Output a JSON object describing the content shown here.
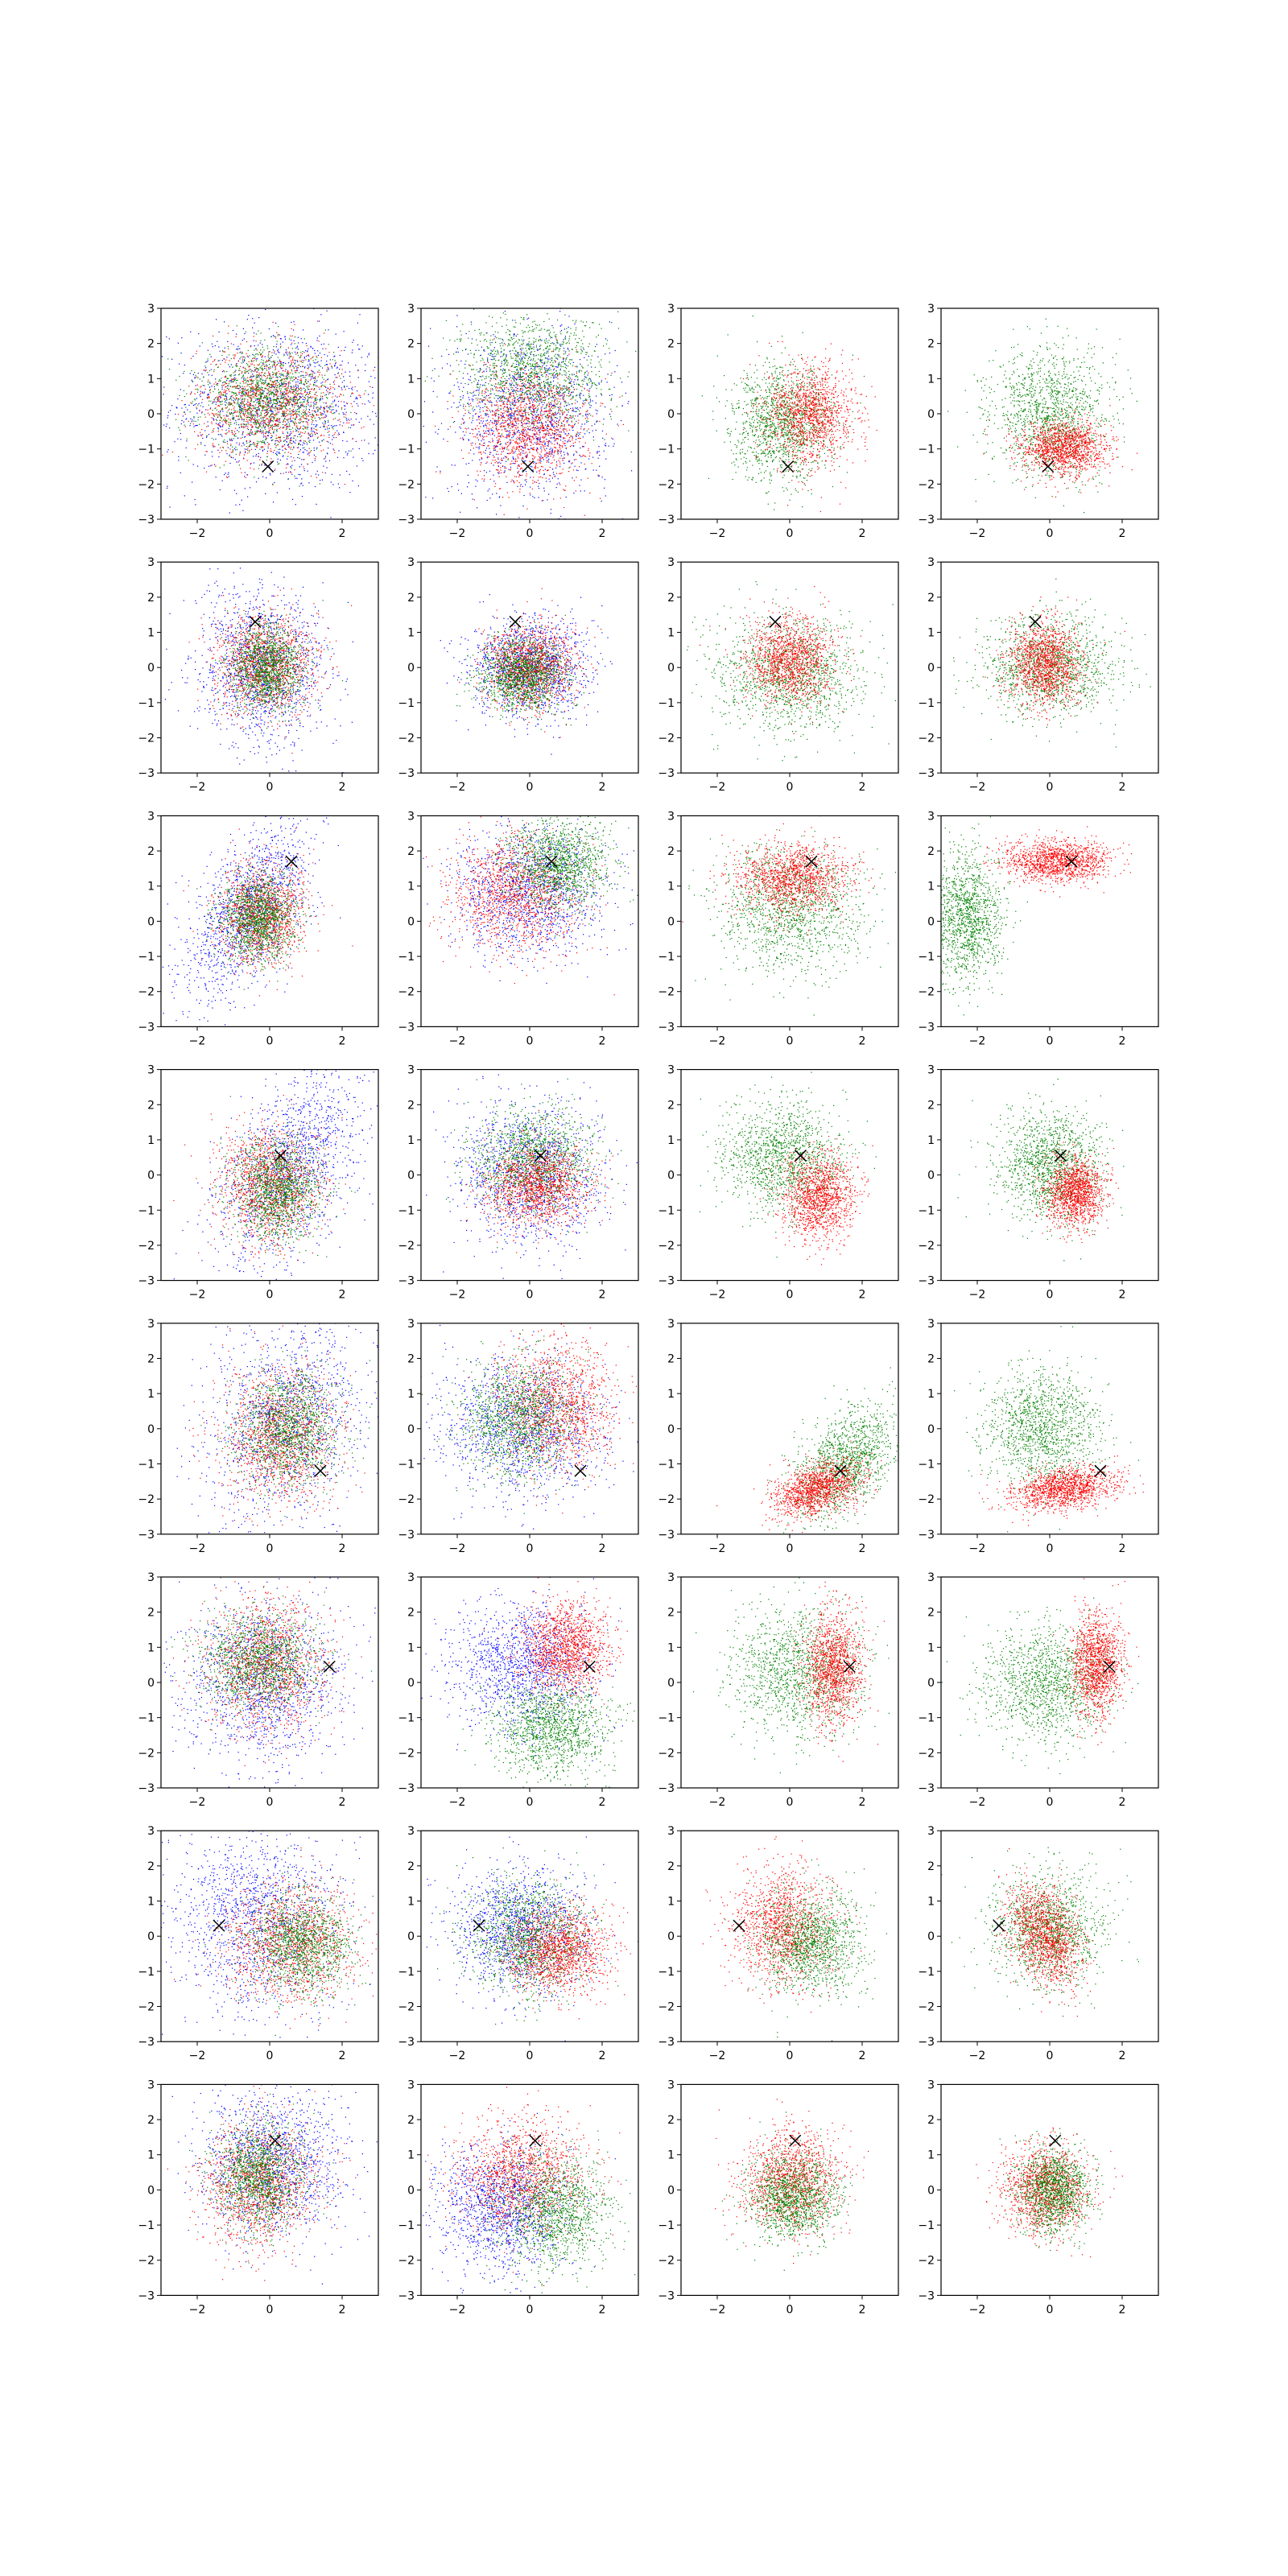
{
  "figure": {
    "rows": 8,
    "cols": 4,
    "colors": {
      "blue": "#0000ff",
      "green": "#008000",
      "red": "#ff0000",
      "marker": "#000000"
    },
    "marker_symbol": "x"
  },
  "chart_data": {
    "type": "scatter",
    "xlim": [
      -3,
      3
    ],
    "ylim": [
      -3,
      3
    ],
    "xticks": [
      -2,
      0,
      2
    ],
    "yticks": [
      -3,
      -2,
      -1,
      0,
      1,
      2,
      3
    ],
    "xtick_labels": [
      "−2",
      "0",
      "2"
    ],
    "ytick_labels": [
      "−3",
      "−2",
      "−1",
      "0",
      "1",
      "2",
      "3"
    ],
    "grid": false,
    "legend": "none",
    "rows": [
      {
        "marker": [
          -0.05,
          -1.5
        ],
        "panels": [
          {
            "clouds": [
              {
                "color": "blue",
                "mx": 0.3,
                "my": 0.2,
                "sx": 1.5,
                "sy": 1.2,
                "rho": 0.0
              },
              {
                "color": "red",
                "mx": 0.0,
                "my": 0.3,
                "sx": 1.0,
                "sy": 0.8,
                "rho": 0.0
              },
              {
                "color": "green",
                "mx": -0.1,
                "my": 0.4,
                "sx": 0.9,
                "sy": 0.7,
                "rho": 0.0
              }
            ]
          },
          {
            "clouds": [
              {
                "color": "blue",
                "mx": 0.0,
                "my": 0.0,
                "sx": 1.1,
                "sy": 1.2,
                "rho": 0.0
              },
              {
                "color": "green",
                "mx": 0.1,
                "my": 1.2,
                "sx": 1.0,
                "sy": 0.8,
                "rho": 0.0
              },
              {
                "color": "red",
                "mx": 0.0,
                "my": -0.4,
                "sx": 0.8,
                "sy": 0.8,
                "rho": 0.0
              }
            ]
          },
          {
            "clouds": [
              {
                "color": "green",
                "mx": -0.2,
                "my": -0.3,
                "sx": 0.7,
                "sy": 0.8,
                "rho": 0.0
              },
              {
                "color": "red",
                "mx": 0.6,
                "my": 0.0,
                "sx": 0.6,
                "sy": 0.7,
                "rho": 0.0
              }
            ]
          },
          {
            "clouds": [
              {
                "color": "green",
                "mx": 0.0,
                "my": 0.0,
                "sx": 0.8,
                "sy": 0.9,
                "rho": 0.0
              },
              {
                "color": "red",
                "mx": 0.4,
                "my": -1.0,
                "sx": 0.6,
                "sy": 0.4,
                "rho": 0.0
              }
            ]
          }
        ]
      },
      {
        "marker": [
          -0.4,
          1.3
        ],
        "panels": [
          {
            "clouds": [
              {
                "color": "blue",
                "mx": -0.2,
                "my": 0.0,
                "sx": 0.9,
                "sy": 1.1,
                "rho": 0.0
              },
              {
                "color": "red",
                "mx": -0.1,
                "my": 0.1,
                "sx": 0.7,
                "sy": 0.7,
                "rho": 0.0
              },
              {
                "color": "green",
                "mx": -0.1,
                "my": 0.0,
                "sx": 0.5,
                "sy": 0.6,
                "rho": 0.0
              }
            ]
          },
          {
            "clouds": [
              {
                "color": "blue",
                "mx": 0.0,
                "my": 0.0,
                "sx": 0.8,
                "sy": 0.7,
                "rho": 0.0
              },
              {
                "color": "red",
                "mx": 0.0,
                "my": 0.0,
                "sx": 0.6,
                "sy": 0.6,
                "rho": 0.0
              },
              {
                "color": "green",
                "mx": -0.2,
                "my": -0.2,
                "sx": 0.6,
                "sy": 0.5,
                "rho": 0.0
              }
            ]
          },
          {
            "clouds": [
              {
                "color": "green",
                "mx": 0.0,
                "my": -0.2,
                "sx": 1.0,
                "sy": 0.8,
                "rho": 0.0
              },
              {
                "color": "red",
                "mx": 0.0,
                "my": 0.2,
                "sx": 0.6,
                "sy": 0.6,
                "rho": 0.0
              }
            ]
          },
          {
            "clouds": [
              {
                "color": "green",
                "mx": 0.0,
                "my": 0.0,
                "sx": 0.9,
                "sy": 0.7,
                "rho": 0.0
              },
              {
                "color": "red",
                "mx": -0.1,
                "my": 0.1,
                "sx": 0.5,
                "sy": 0.6,
                "rho": 0.0
              }
            ]
          }
        ]
      },
      {
        "marker": [
          0.6,
          1.7
        ],
        "panels": [
          {
            "clouds": [
              {
                "color": "blue",
                "mx": -0.6,
                "my": 0.3,
                "sx": 0.9,
                "sy": 1.3,
                "rho": 0.6
              },
              {
                "color": "red",
                "mx": -0.2,
                "my": 0.2,
                "sx": 0.6,
                "sy": 0.7,
                "rho": 0.0
              },
              {
                "color": "green",
                "mx": -0.3,
                "my": 0.1,
                "sx": 0.5,
                "sy": 0.6,
                "rho": 0.0
              }
            ]
          },
          {
            "clouds": [
              {
                "color": "blue",
                "mx": 0.0,
                "my": 0.9,
                "sx": 1.0,
                "sy": 0.9,
                "rho": 0.0
              },
              {
                "color": "red",
                "mx": -0.4,
                "my": 0.8,
                "sx": 0.9,
                "sy": 0.8,
                "rho": 0.0
              },
              {
                "color": "green",
                "mx": 0.8,
                "my": 1.6,
                "sx": 0.7,
                "sy": 0.6,
                "rho": 0.0
              }
            ]
          },
          {
            "clouds": [
              {
                "color": "green",
                "mx": 0.0,
                "my": 0.3,
                "sx": 1.0,
                "sy": 0.9,
                "rho": 0.0
              },
              {
                "color": "red",
                "mx": 0.1,
                "my": 1.2,
                "sx": 0.8,
                "sy": 0.5,
                "rho": 0.0
              }
            ]
          },
          {
            "clouds": [
              {
                "color": "green",
                "mx": -2.3,
                "my": 0.1,
                "sx": 0.5,
                "sy": 0.9,
                "rho": 0.0
              },
              {
                "color": "red",
                "mx": 0.2,
                "my": 1.7,
                "sx": 0.7,
                "sy": 0.3,
                "rho": 0.0
              }
            ]
          }
        ]
      },
      {
        "marker": [
          0.3,
          0.55
        ],
        "panels": [
          {
            "clouds": [
              {
                "color": "blue",
                "mx": 0.6,
                "my": 0.2,
                "sx": 1.0,
                "sy": 1.4,
                "rho": 0.5
              },
              {
                "color": "red",
                "mx": 0.0,
                "my": -0.3,
                "sx": 0.7,
                "sy": 0.8,
                "rho": 0.0
              },
              {
                "color": "green",
                "mx": 0.2,
                "my": -0.4,
                "sx": 0.6,
                "sy": 0.7,
                "rho": 0.0
              }
            ]
          },
          {
            "clouds": [
              {
                "color": "blue",
                "mx": 0.0,
                "my": 0.0,
                "sx": 1.0,
                "sy": 1.0,
                "rho": 0.0
              },
              {
                "color": "green",
                "mx": 0.1,
                "my": 0.4,
                "sx": 0.8,
                "sy": 0.7,
                "rho": 0.0
              },
              {
                "color": "red",
                "mx": 0.2,
                "my": -0.3,
                "sx": 0.7,
                "sy": 0.6,
                "rho": 0.0
              }
            ]
          },
          {
            "clouds": [
              {
                "color": "green",
                "mx": -0.2,
                "my": 0.5,
                "sx": 0.8,
                "sy": 0.8,
                "rho": 0.0
              },
              {
                "color": "red",
                "mx": 0.8,
                "my": -0.6,
                "sx": 0.5,
                "sy": 0.6,
                "rho": 0.0
              }
            ]
          },
          {
            "clouds": [
              {
                "color": "green",
                "mx": 0.0,
                "my": 0.3,
                "sx": 0.7,
                "sy": 0.8,
                "rho": 0.0
              },
              {
                "color": "red",
                "mx": 0.7,
                "my": -0.5,
                "sx": 0.4,
                "sy": 0.5,
                "rho": 0.0
              }
            ]
          }
        ]
      },
      {
        "marker": [
          1.4,
          -1.2
        ],
        "panels": [
          {
            "clouds": [
              {
                "color": "blue",
                "mx": 0.5,
                "my": 0.3,
                "sx": 1.1,
                "sy": 1.5,
                "rho": 0.2
              },
              {
                "color": "red",
                "mx": 0.3,
                "my": -0.2,
                "sx": 0.8,
                "sy": 1.0,
                "rho": 0.0
              },
              {
                "color": "green",
                "mx": 0.5,
                "my": 0.0,
                "sx": 0.7,
                "sy": 0.8,
                "rho": 0.0
              }
            ]
          },
          {
            "clouds": [
              {
                "color": "blue",
                "mx": -0.2,
                "my": 0.1,
                "sx": 1.1,
                "sy": 1.0,
                "rho": 0.0
              },
              {
                "color": "red",
                "mx": 0.7,
                "my": 0.6,
                "sx": 0.8,
                "sy": 0.9,
                "rho": 0.0
              },
              {
                "color": "green",
                "mx": -0.3,
                "my": 0.3,
                "sx": 0.8,
                "sy": 0.8,
                "rho": 0.0
              }
            ]
          },
          {
            "clouds": [
              {
                "color": "green",
                "mx": 1.5,
                "my": -1.0,
                "sx": 0.7,
                "sy": 0.8,
                "rho": 0.5
              },
              {
                "color": "red",
                "mx": 0.8,
                "my": -1.7,
                "sx": 0.6,
                "sy": 0.4,
                "rho": 0.4
              }
            ]
          },
          {
            "clouds": [
              {
                "color": "green",
                "mx": -0.2,
                "my": 0.0,
                "sx": 0.8,
                "sy": 0.8,
                "rho": 0.0
              },
              {
                "color": "red",
                "mx": 0.4,
                "my": -1.7,
                "sx": 0.7,
                "sy": 0.3,
                "rho": 0.3
              }
            ]
          }
        ]
      },
      {
        "marker": [
          1.65,
          0.45
        ],
        "panels": [
          {
            "clouds": [
              {
                "color": "blue",
                "mx": -0.2,
                "my": 0.0,
                "sx": 1.1,
                "sy": 1.2,
                "rho": 0.0
              },
              {
                "color": "red",
                "mx": -0.1,
                "my": 0.5,
                "sx": 0.8,
                "sy": 0.9,
                "rho": 0.0
              },
              {
                "color": "green",
                "mx": -0.3,
                "my": 0.6,
                "sx": 0.8,
                "sy": 0.7,
                "rho": 0.0
              }
            ]
          },
          {
            "clouds": [
              {
                "color": "blue",
                "mx": -0.2,
                "my": 0.5,
                "sx": 1.0,
                "sy": 0.9,
                "rho": 0.0
              },
              {
                "color": "red",
                "mx": 1.0,
                "my": 1.0,
                "sx": 0.6,
                "sy": 0.6,
                "rho": 0.0
              },
              {
                "color": "green",
                "mx": 0.6,
                "my": -1.3,
                "sx": 0.8,
                "sy": 0.7,
                "rho": 0.0
              }
            ]
          },
          {
            "clouds": [
              {
                "color": "green",
                "mx": 0.2,
                "my": 0.3,
                "sx": 0.9,
                "sy": 0.9,
                "rho": 0.0
              },
              {
                "color": "red",
                "mx": 1.2,
                "my": 0.4,
                "sx": 0.4,
                "sy": 0.8,
                "rho": 0.0
              }
            ]
          },
          {
            "clouds": [
              {
                "color": "green",
                "mx": -0.1,
                "my": 0.0,
                "sx": 0.9,
                "sy": 0.8,
                "rho": 0.0
              },
              {
                "color": "red",
                "mx": 1.3,
                "my": 0.5,
                "sx": 0.35,
                "sy": 0.7,
                "rho": 0.0
              }
            ]
          }
        ]
      },
      {
        "marker": [
          -1.4,
          0.3
        ],
        "panels": [
          {
            "clouds": [
              {
                "color": "blue",
                "mx": -0.4,
                "my": 0.5,
                "sx": 1.2,
                "sy": 1.3,
                "rho": 0.0
              },
              {
                "color": "red",
                "mx": 0.6,
                "my": -0.2,
                "sx": 0.9,
                "sy": 0.8,
                "rho": 0.0
              },
              {
                "color": "green",
                "mx": 0.9,
                "my": -0.2,
                "sx": 0.7,
                "sy": 0.7,
                "rho": 0.0
              }
            ]
          },
          {
            "clouds": [
              {
                "color": "blue",
                "mx": -0.2,
                "my": 0.2,
                "sx": 0.9,
                "sy": 0.9,
                "rho": 0.0
              },
              {
                "color": "green",
                "mx": 0.0,
                "my": 0.0,
                "sx": 0.8,
                "sy": 0.8,
                "rho": 0.0
              },
              {
                "color": "red",
                "mx": 0.8,
                "my": -0.4,
                "sx": 0.7,
                "sy": 0.6,
                "rho": 0.0
              }
            ]
          },
          {
            "clouds": [
              {
                "color": "red",
                "mx": -0.2,
                "my": 0.3,
                "sx": 0.7,
                "sy": 0.8,
                "rho": 0.0
              },
              {
                "color": "green",
                "mx": 0.6,
                "my": -0.2,
                "sx": 0.7,
                "sy": 0.7,
                "rho": 0.0
              }
            ]
          },
          {
            "clouds": [
              {
                "color": "green",
                "mx": 0.0,
                "my": 0.2,
                "sx": 0.8,
                "sy": 0.8,
                "rho": 0.0
              },
              {
                "color": "red",
                "mx": -0.1,
                "my": 0.0,
                "sx": 0.5,
                "sy": 0.7,
                "rho": -0.3
              }
            ]
          }
        ]
      },
      {
        "marker": [
          0.15,
          1.4
        ],
        "panels": [
          {
            "clouds": [
              {
                "color": "blue",
                "mx": 0.1,
                "my": 0.8,
                "sx": 1.0,
                "sy": 1.1,
                "rho": 0.0
              },
              {
                "color": "red",
                "mx": -0.3,
                "my": 0.2,
                "sx": 0.8,
                "sy": 0.9,
                "rho": 0.0
              },
              {
                "color": "green",
                "mx": -0.3,
                "my": 0.4,
                "sx": 0.6,
                "sy": 0.7,
                "rho": 0.0
              }
            ]
          },
          {
            "clouds": [
              {
                "color": "blue",
                "mx": -0.8,
                "my": -0.5,
                "sx": 0.9,
                "sy": 0.9,
                "rho": 0.0
              },
              {
                "color": "red",
                "mx": -0.2,
                "my": 0.4,
                "sx": 0.9,
                "sy": 0.8,
                "rho": 0.0
              },
              {
                "color": "green",
                "mx": 0.7,
                "my": -0.6,
                "sx": 0.8,
                "sy": 0.8,
                "rho": 0.0
              }
            ]
          },
          {
            "clouds": [
              {
                "color": "red",
                "mx": 0.0,
                "my": 0.3,
                "sx": 0.7,
                "sy": 0.7,
                "rho": 0.0
              },
              {
                "color": "green",
                "mx": 0.1,
                "my": -0.2,
                "sx": 0.6,
                "sy": 0.6,
                "rho": 0.0
              }
            ]
          },
          {
            "clouds": [
              {
                "color": "red",
                "mx": -0.1,
                "my": 0.0,
                "sx": 0.6,
                "sy": 0.6,
                "rho": 0.0
              },
              {
                "color": "green",
                "mx": 0.1,
                "my": 0.0,
                "sx": 0.5,
                "sy": 0.6,
                "rho": 0.0
              }
            ]
          }
        ]
      }
    ]
  }
}
